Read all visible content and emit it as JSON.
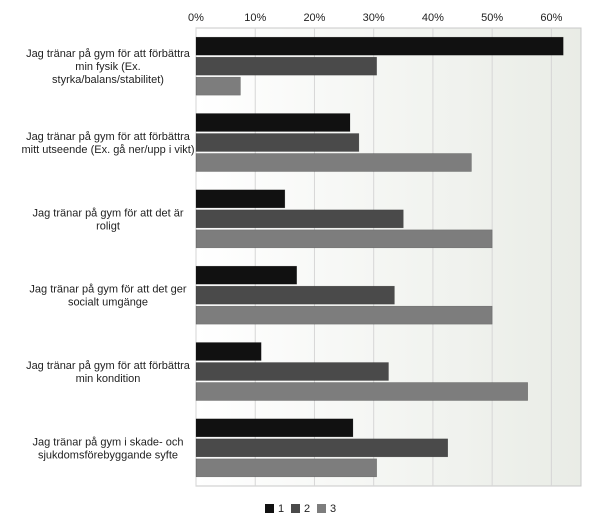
{
  "chart_data": {
    "type": "bar",
    "orientation": "horizontal",
    "title": "",
    "xlabel": "",
    "ylabel": "",
    "xlim": [
      0,
      0.65
    ],
    "tick_values": [
      0,
      0.1,
      0.2,
      0.3,
      0.4,
      0.5,
      0.6
    ],
    "tick_labels": [
      "0%",
      "10%",
      "20%",
      "30%",
      "40%",
      "50%",
      "60%"
    ],
    "grid": true,
    "legend_position": "bottom",
    "categories": [
      [
        "Jag tränar på gym för att förbättra",
        "min fysik (Ex.",
        "styrka/balans/stabilitet)"
      ],
      [
        "Jag tränar på gym för att förbättra",
        "mitt utseende (Ex. gå ner/upp i vikt)"
      ],
      [
        "Jag tränar på gym för att det är",
        "roligt"
      ],
      [
        "Jag tränar på gym för att det ger",
        "socialt umgänge"
      ],
      [
        "Jag tränar på gym för att förbättra",
        "min kondition"
      ],
      [
        "Jag tränar på gym i skade- och",
        "sjukdomsförebyggande syfte"
      ]
    ],
    "series": [
      {
        "name": "1",
        "color": "#111111",
        "values": [
          0.62,
          0.26,
          0.15,
          0.17,
          0.11,
          0.265
        ]
      },
      {
        "name": "2",
        "color": "#4a4a4a",
        "values": [
          0.305,
          0.275,
          0.35,
          0.335,
          0.325,
          0.425
        ]
      },
      {
        "name": "3",
        "color": "#7d7d7d",
        "values": [
          0.075,
          0.465,
          0.5,
          0.5,
          0.56,
          0.305
        ]
      }
    ]
  }
}
